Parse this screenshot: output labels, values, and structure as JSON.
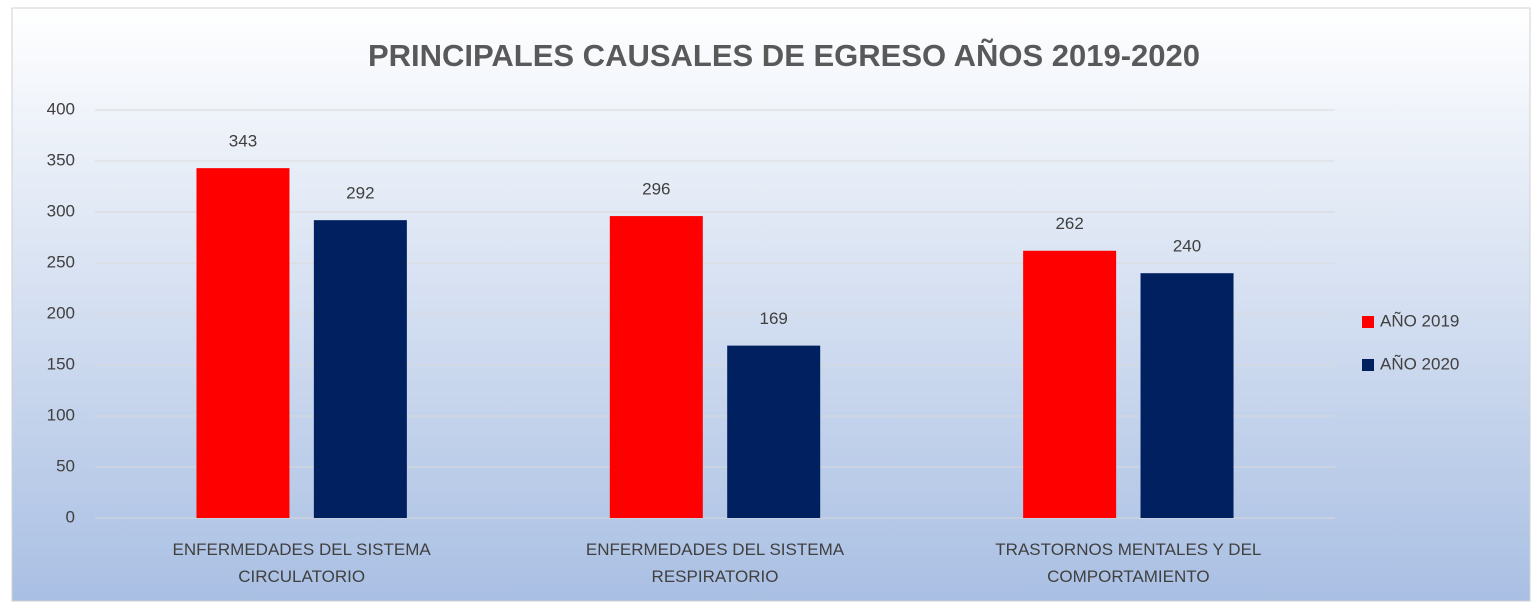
{
  "chart_data": {
    "type": "bar",
    "title": "PRINCIPALES CAUSALES DE EGRESO AÑOS 2019-2020",
    "categories": [
      "ENFERMEDADES DEL SISTEMA CIRCULATORIO",
      "ENFERMEDADES DEL SISTEMA RESPIRATORIO",
      "TRASTORNOS MENTALES Y DEL COMPORTAMIENTO"
    ],
    "series": [
      {
        "name": "AÑO 2019",
        "color": "#ff0000",
        "values": [
          343,
          296,
          262
        ]
      },
      {
        "name": "AÑO 2020",
        "color": "#002060",
        "values": [
          292,
          169,
          240
        ]
      }
    ],
    "ylim": [
      0,
      400
    ],
    "yticks": [
      0,
      50,
      100,
      150,
      200,
      250,
      300,
      350,
      400
    ],
    "grid": true,
    "legend": "right"
  }
}
